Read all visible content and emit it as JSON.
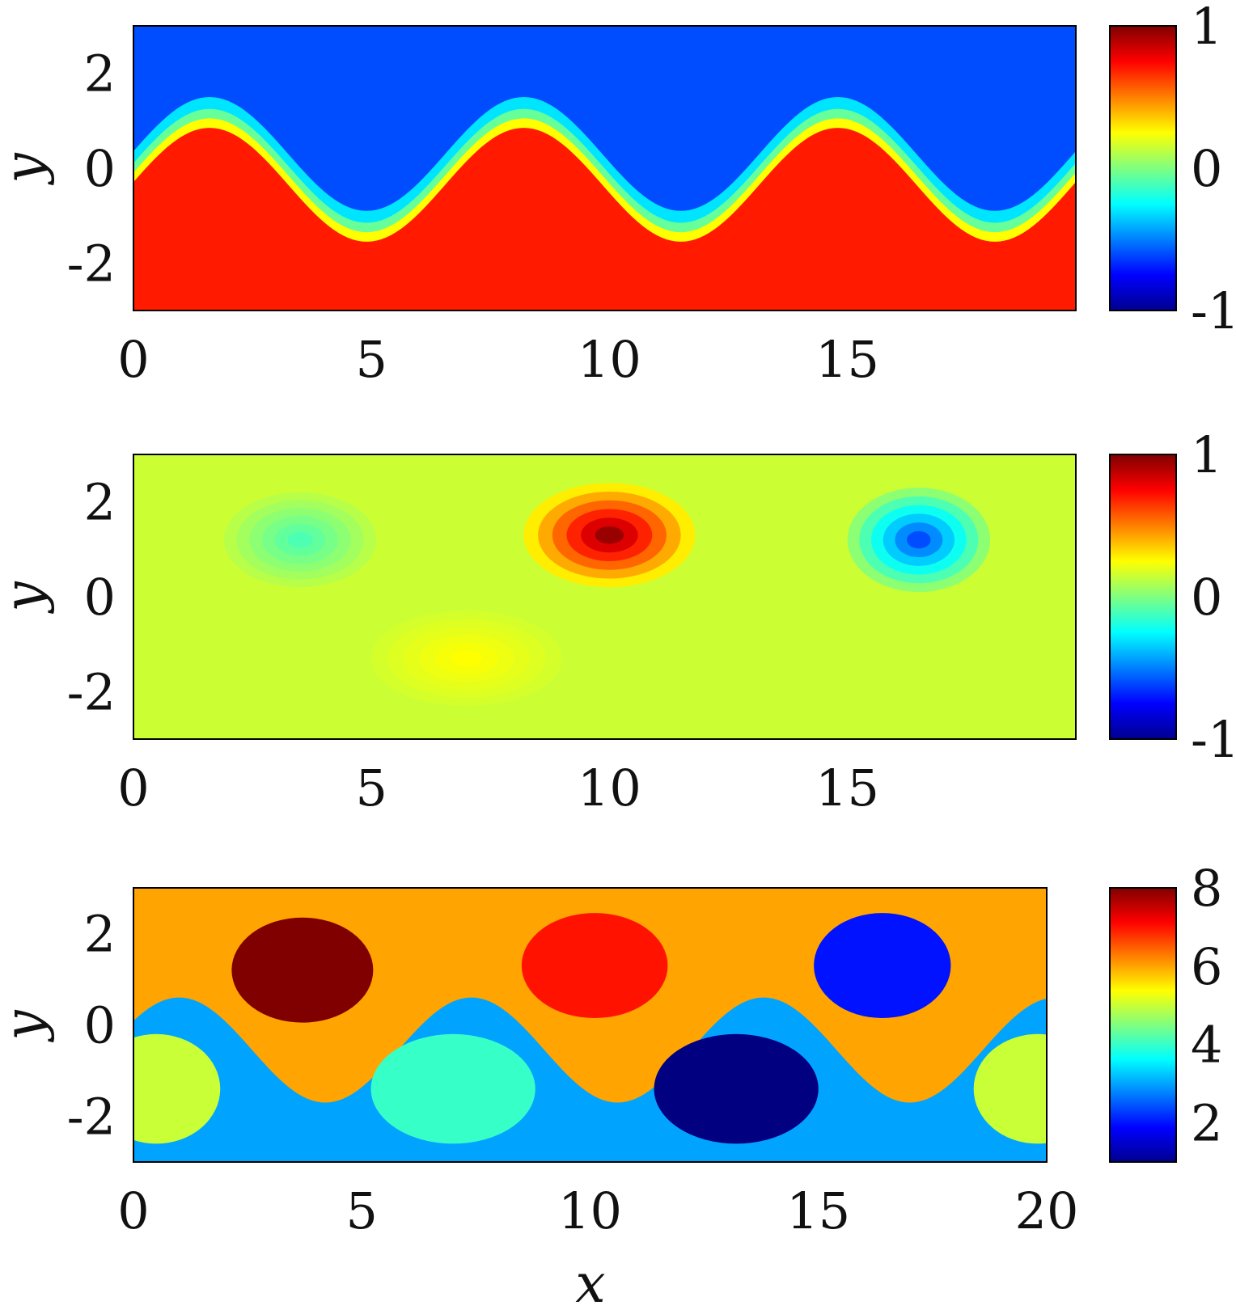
{
  "chart_data": [
    {
      "type": "heatmap",
      "title": "",
      "xlabel": "",
      "ylabel": "y",
      "xlim": [
        0,
        19.8
      ],
      "ylim": [
        -3.0,
        3.0
      ],
      "xticks": [
        "0",
        "5",
        "10",
        "15"
      ],
      "yticks": [
        "2",
        "0",
        "-2"
      ],
      "colorbar": {
        "min": -1,
        "max": 1,
        "ticks": [
          "1",
          "0",
          "-1"
        ],
        "colormap": "jet"
      },
      "description_regions": [
        {
          "name": "upper band",
          "value_approx": -0.6
        },
        {
          "name": "lower band",
          "value_approx": 0.7
        }
      ],
      "interface": {
        "y0": 0.0,
        "amplitude": 1.2,
        "wavelength": 6.6,
        "phase_x": 1.6
      }
    },
    {
      "type": "heatmap",
      "title": "",
      "xlabel": "",
      "ylabel": "y",
      "xlim": [
        0,
        19.8
      ],
      "ylim": [
        -3.0,
        3.0
      ],
      "xticks": [
        "0",
        "5",
        "10",
        "15"
      ],
      "yticks": [
        "2",
        "0",
        "-2"
      ],
      "colorbar": {
        "min": -1,
        "max": 1,
        "ticks": [
          "1",
          "0",
          "-1"
        ],
        "colormap": "jet"
      },
      "background_value": 0.15,
      "blobs": [
        {
          "cx": 10.0,
          "cy": 1.3,
          "rx": 1.8,
          "ry": 1.1,
          "value": 0.95
        },
        {
          "cx": 16.5,
          "cy": 1.2,
          "rx": 1.5,
          "ry": 1.1,
          "value": -0.6
        },
        {
          "cx": 3.5,
          "cy": 1.2,
          "rx": 1.6,
          "ry": 1.0,
          "value": -0.1
        },
        {
          "cx": 7.0,
          "cy": -1.3,
          "rx": 2.0,
          "ry": 1.0,
          "value": 0.25
        }
      ]
    },
    {
      "type": "heatmap",
      "title": "",
      "xlabel": "x",
      "ylabel": "y",
      "xlim": [
        0,
        20
      ],
      "ylim": [
        -3.0,
        3.0
      ],
      "xticks": [
        "0",
        "5",
        "10",
        "15",
        "20"
      ],
      "yticks": [
        "2",
        "0",
        "-2"
      ],
      "colorbar": {
        "min": 1,
        "max": 8,
        "ticks": [
          "8",
          "6",
          "4",
          "2"
        ],
        "colormap": "jet"
      },
      "background_regions": [
        {
          "name": "upper region",
          "label": 6
        },
        {
          "name": "lower region",
          "label": 3
        }
      ],
      "clusters": [
        {
          "cx": 3.7,
          "cy": 1.2,
          "rx": 1.55,
          "ry": 1.15,
          "label": 8
        },
        {
          "cx": 10.1,
          "cy": 1.3,
          "rx": 1.6,
          "ry": 1.15,
          "label": 7
        },
        {
          "cx": 16.4,
          "cy": 1.3,
          "rx": 1.5,
          "ry": 1.15,
          "label": 2
        },
        {
          "cx": 7.0,
          "cy": -1.4,
          "rx": 1.8,
          "ry": 1.2,
          "label": 4
        },
        {
          "cx": 13.2,
          "cy": -1.4,
          "rx": 1.8,
          "ry": 1.2,
          "label": 1
        },
        {
          "cx": 0.5,
          "cy": -1.4,
          "rx": 1.4,
          "ry": 1.2,
          "label": 5
        },
        {
          "cx": 19.8,
          "cy": -1.4,
          "rx": 1.4,
          "ry": 1.2,
          "label": 5
        }
      ]
    }
  ]
}
